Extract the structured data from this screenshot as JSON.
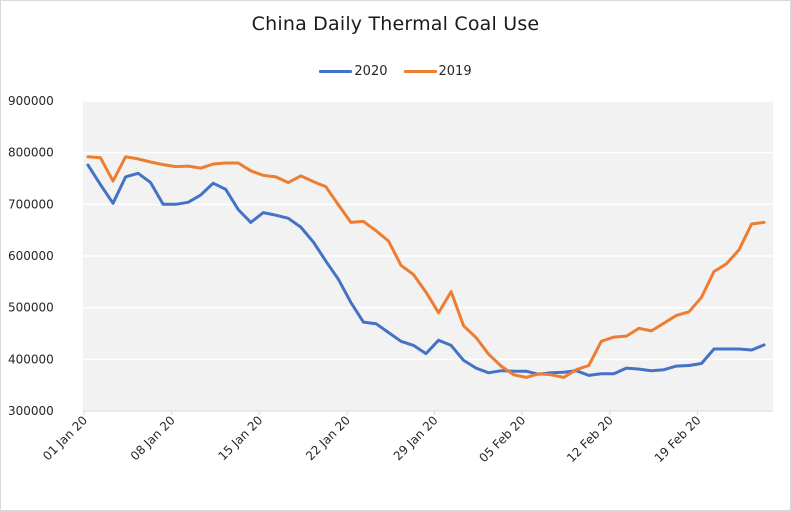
{
  "chart_data": {
    "type": "line",
    "title": "China Daily Thermal Coal Use",
    "xlabel": "",
    "ylabel": "",
    "ylim": [
      300000,
      900000
    ],
    "yticks": [
      "900000",
      "800000",
      "700000",
      "600000",
      "500000",
      "400000",
      "300000"
    ],
    "ytick_values": [
      900000,
      800000,
      700000,
      600000,
      500000,
      400000,
      300000
    ],
    "xticks": [
      "01 Jan 20",
      "08 Jan 20",
      "15 Jan 20",
      "22 Jan 20",
      "29 Jan 20",
      "05 Feb 20",
      "12 Feb 20",
      "19 Feb 20"
    ],
    "xtick_day_index": [
      0,
      7,
      14,
      21,
      28,
      35,
      42,
      49
    ],
    "x_start": "01 Jan 20",
    "x_end": "24 Feb 20",
    "grid": true,
    "legend_position": "top",
    "series": [
      {
        "name": "2020",
        "color": "#4472c4",
        "values": [
          776000,
          738000,
          702000,
          753000,
          760000,
          742000,
          700000,
          700000,
          704000,
          718000,
          741000,
          729000,
          690000,
          665000,
          684000,
          679000,
          673000,
          656000,
          627000,
          590000,
          555000,
          510000,
          472000,
          469000,
          452000,
          435000,
          427000,
          411000,
          437000,
          427000,
          398000,
          383000,
          374000,
          378000,
          377000,
          377000,
          371000,
          374000,
          375000,
          378000,
          369000,
          372000,
          372000,
          383000,
          381000,
          378000,
          380000,
          387000,
          388000,
          392000,
          420000,
          420000,
          420000,
          418000,
          428000
        ]
      },
      {
        "name": "2019",
        "color": "#ed7d31",
        "values": [
          792000,
          790000,
          745000,
          792000,
          788000,
          782000,
          777000,
          773000,
          774000,
          770000,
          778000,
          780000,
          780000,
          765000,
          756000,
          753000,
          742000,
          755000,
          744000,
          734000,
          699000,
          665000,
          667000,
          649000,
          629000,
          582000,
          564000,
          530000,
          490000,
          531000,
          465000,
          442000,
          410000,
          387000,
          370000,
          365000,
          372000,
          370000,
          365000,
          380000,
          388000,
          435000,
          443000,
          445000,
          460000,
          455000,
          470000,
          485000,
          492000,
          520000,
          570000,
          585000,
          612000,
          662000,
          665000
        ]
      }
    ]
  },
  "colors": {
    "plot_background": "#f2f2f2",
    "gridline": "#ffffff",
    "axis": "#d9d9d9"
  }
}
